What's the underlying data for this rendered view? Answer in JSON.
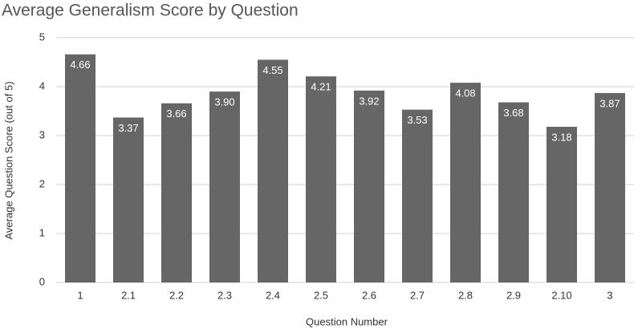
{
  "chart_data": {
    "type": "bar",
    "title": "Average Generalism Score by Question",
    "x_label": "Question Number",
    "y_label": "Average Question Score (out of 5)",
    "categories": [
      "1",
      "2.1",
      "2.2",
      "2.3",
      "2.4",
      "2.5",
      "2.6",
      "2.7",
      "2.8",
      "2.9",
      "2.10",
      "3"
    ],
    "values": [
      4.66,
      3.37,
      3.66,
      3.9,
      4.55,
      4.21,
      3.92,
      3.53,
      4.08,
      3.68,
      3.18,
      3.87
    ],
    "value_labels": [
      "4.66",
      "3.37",
      "3.66",
      "3.90",
      "4.55",
      "4.21",
      "3.92",
      "3.53",
      "4.08",
      "3.68",
      "3.18",
      "3.87"
    ],
    "color": "#666666",
    "ylim": [
      0,
      5
    ],
    "yticks": [
      0,
      1,
      2,
      3,
      4,
      5
    ],
    "grid": true
  }
}
